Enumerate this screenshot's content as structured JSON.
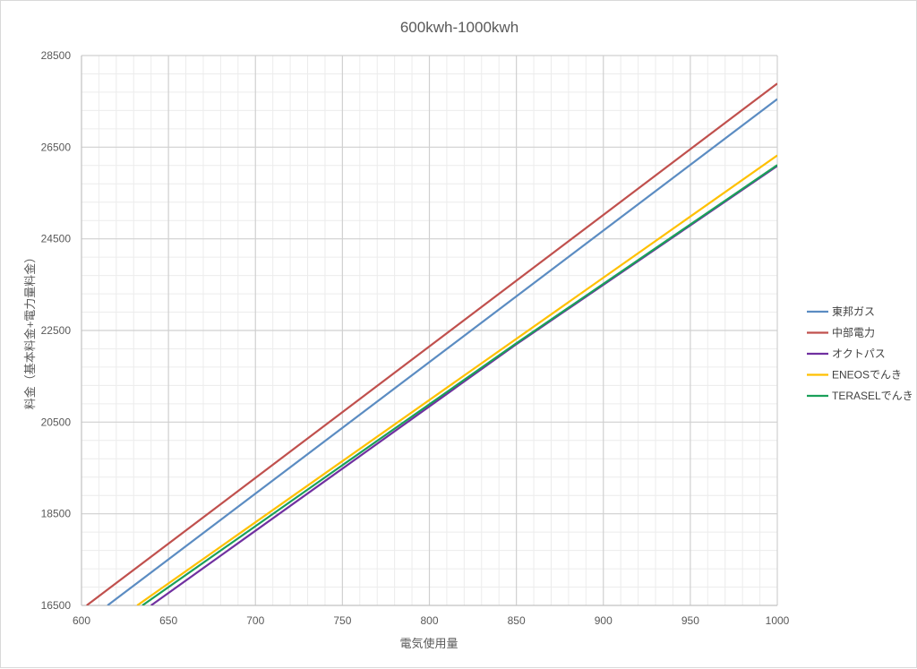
{
  "chart_data": {
    "type": "line",
    "title": "600kwh-1000kwh",
    "xlabel": "電気使用量",
    "ylabel": "料金（基本料金+電力量料金）",
    "xlim": [
      600,
      1000
    ],
    "ylim": [
      16500,
      28500
    ],
    "x_ticks": [
      600,
      650,
      700,
      750,
      800,
      850,
      900,
      950,
      1000
    ],
    "y_ticks": [
      16500,
      18500,
      20500,
      22500,
      24500,
      26500,
      28500
    ],
    "grid": true,
    "legend_position": "right",
    "series": [
      {
        "name": "東邦ガス",
        "color": "#5b8cc2",
        "points": [
          [
            615,
            16500
          ],
          [
            1000,
            27550
          ]
        ]
      },
      {
        "name": "中部電力",
        "color": "#c0504d",
        "points": [
          [
            603,
            16500
          ],
          [
            1000,
            27890
          ]
        ]
      },
      {
        "name": "オクトパス",
        "color": "#7030a0",
        "points": [
          [
            640,
            16500
          ],
          [
            850,
            22200
          ],
          [
            1000,
            26090
          ]
        ]
      },
      {
        "name": "ENEOSでんき",
        "color": "#ffc000",
        "points": [
          [
            632,
            16500
          ],
          [
            1000,
            26320
          ]
        ]
      },
      {
        "name": "TERASELでんき",
        "color": "#1aa05a",
        "points": [
          [
            635,
            16500
          ],
          [
            850,
            22220
          ],
          [
            1000,
            26110
          ]
        ]
      }
    ]
  }
}
